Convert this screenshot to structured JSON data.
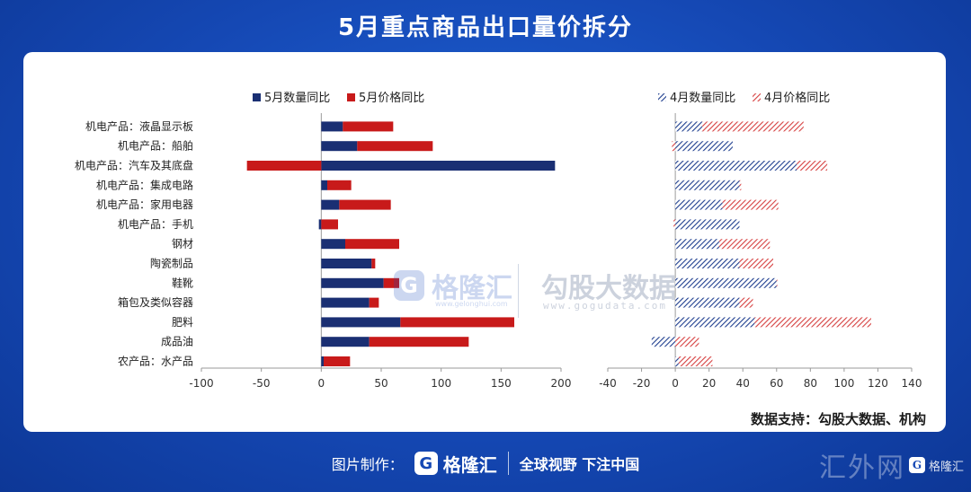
{
  "title": "5月重点商品出口量价拆分",
  "source_note": "数据支持：勾股大数据、机构",
  "footer": {
    "label": "图片制作：",
    "logo_letter": "G",
    "logo_text": "格隆汇",
    "slogan": "全球视野 下注中国"
  },
  "watermarks": {
    "gelonghui_letter": "G",
    "gelonghui": "格隆汇",
    "gelonghui_sub": "www.gelonghui.com",
    "gogu": "勾股大数据",
    "gogu_sub": "www.gogudata.com"
  },
  "corner_mark": {
    "big": "汇外网",
    "letter": "G",
    "small": "格隆汇"
  },
  "colors": {
    "navy": "#1a2f73",
    "red": "#c81a1a",
    "hatch_blue": "#1f3f8f",
    "hatch_red": "#d64040"
  },
  "chart_data": [
    {
      "type": "bar",
      "orientation": "horizontal",
      "stacked": true,
      "categories": [
        "机电产品：液晶显示板",
        "机电产品：船舶",
        "机电产品：汽车及其底盘",
        "机电产品：集成电路",
        "机电产品：家用电器",
        "机电产品：手机",
        "钢材",
        "陶瓷制品",
        "鞋靴",
        "箱包及类似容器",
        "肥料",
        "成品油",
        "农产品：水产品"
      ],
      "series": [
        {
          "name": "5月数量同比",
          "values": [
            18,
            30,
            195,
            5,
            15,
            -2,
            20,
            42,
            52,
            40,
            66,
            40,
            2
          ]
        },
        {
          "name": "5月价格同比",
          "values": [
            42,
            63,
            -62,
            20,
            43,
            14,
            45,
            3,
            13,
            8,
            95,
            83,
            22
          ]
        }
      ],
      "xlim": [
        -100,
        200
      ],
      "xticks": [
        -100,
        -50,
        0,
        50,
        100,
        150,
        200
      ],
      "legend": "top"
    },
    {
      "type": "bar",
      "orientation": "horizontal",
      "stacked": true,
      "pattern": "hatched",
      "categories": [
        "机电产品：液晶显示板",
        "机电产品：船舶",
        "机电产品：汽车及其底盘",
        "机电产品：集成电路",
        "机电产品：家用电器",
        "机电产品：手机",
        "钢材",
        "陶瓷制品",
        "鞋靴",
        "箱包及类似容器",
        "肥料",
        "成品油",
        "农产品：水产品"
      ],
      "series": [
        {
          "name": "4月数量同比",
          "values": [
            16,
            34,
            72,
            38,
            28,
            38,
            26,
            38,
            60,
            38,
            47,
            -14,
            2
          ]
        },
        {
          "name": "4月价格同比",
          "values": [
            60,
            -2,
            18,
            1,
            33,
            -1,
            30,
            20,
            0,
            8,
            69,
            14,
            20
          ]
        }
      ],
      "xlim": [
        -40,
        140
      ],
      "xticks": [
        -40,
        -20,
        0,
        20,
        40,
        60,
        80,
        100,
        120,
        140
      ],
      "legend": "top"
    }
  ]
}
